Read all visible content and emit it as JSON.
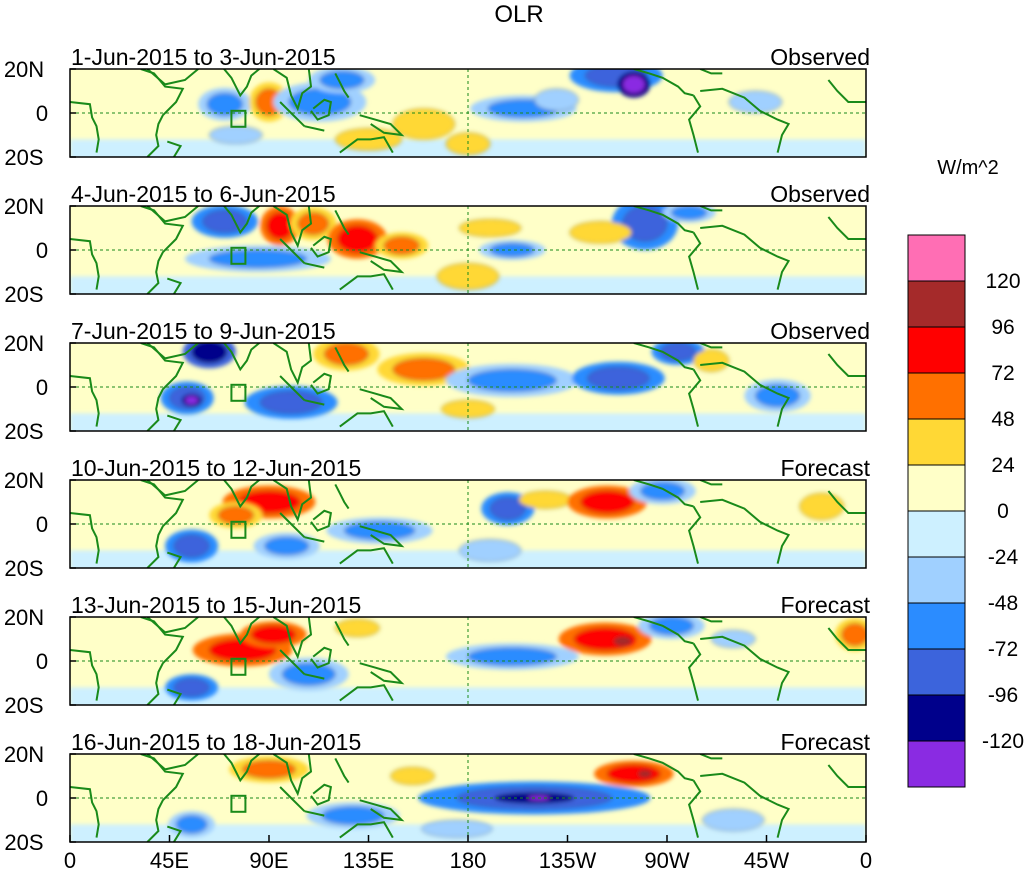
{
  "chart_data": {
    "type": "heatmap",
    "title": "OLR",
    "colorbar_label": "W/m^2",
    "y_tick_labels": [
      "20N",
      "0",
      "20S"
    ],
    "x_tick_labels": [
      "0",
      "45E",
      "90E",
      "135E",
      "180",
      "135W",
      "90W",
      "45W",
      "0"
    ],
    "x_tick_degrees": [
      0,
      45,
      90,
      135,
      180,
      225,
      270,
      315,
      360
    ],
    "lon_range": [
      0,
      360
    ],
    "lat_range": [
      -20,
      20
    ],
    "colorbar": {
      "labels": [
        "120",
        "96",
        "72",
        "48",
        "24",
        "0",
        "-24",
        "-48",
        "-72",
        "-96",
        "-120"
      ],
      "colors": [
        "#ff6eb4",
        "#a52a2a",
        "#ff0000",
        "#ff7000",
        "#ffd835",
        "#ffffc8",
        "#cdf0ff",
        "#a0d0ff",
        "#2b8cff",
        "#3c64dc",
        "#00008b",
        "#8a2be2"
      ]
    },
    "panels": [
      {
        "date_range": "1-Jun-2015 to 3-Jun-2015",
        "status": "Observed",
        "anomalies": [
          {
            "lon": 70,
            "lat": 4,
            "rlon": 8,
            "rlat": 5,
            "value": -48
          },
          {
            "lon": 90,
            "lat": 5,
            "rlon": 6,
            "rlat": 6,
            "value": 48
          },
          {
            "lon": 113,
            "lat": 5,
            "rlon": 14,
            "rlat": 6,
            "value": -48
          },
          {
            "lon": 123,
            "lat": 15,
            "rlon": 10,
            "rlat": 4,
            "value": -48
          },
          {
            "lon": 75,
            "lat": -10,
            "rlon": 12,
            "rlat": 4,
            "value": -24
          },
          {
            "lon": 160,
            "lat": -5,
            "rlon": 14,
            "rlat": 7,
            "value": 24
          },
          {
            "lon": 180,
            "lat": -14,
            "rlon": 10,
            "rlat": 5,
            "value": 24
          },
          {
            "lon": 205,
            "lat": 2,
            "rlon": 16,
            "rlat": 4,
            "value": -48
          },
          {
            "lon": 220,
            "lat": 6,
            "rlon": 10,
            "rlat": 5,
            "value": -24
          },
          {
            "lon": 247,
            "lat": 17,
            "rlon": 14,
            "rlat": 5,
            "value": -72
          },
          {
            "lon": 255,
            "lat": 13,
            "rlon": 5,
            "rlat": 4,
            "value": -120
          },
          {
            "lon": 310,
            "lat": 5,
            "rlon": 12,
            "rlat": 5,
            "value": -24
          },
          {
            "lon": 135,
            "lat": -12,
            "rlon": 15,
            "rlat": 5,
            "value": 24
          }
        ]
      },
      {
        "date_range": "4-Jun-2015 to 6-Jun-2015",
        "status": "Observed",
        "anomalies": [
          {
            "lon": 70,
            "lat": 13,
            "rlon": 10,
            "rlat": 5,
            "value": -72
          },
          {
            "lon": 95,
            "lat": 11,
            "rlon": 6,
            "rlat": 6,
            "value": 72
          },
          {
            "lon": 110,
            "lat": 12,
            "rlon": 7,
            "rlat": 5,
            "value": 48
          },
          {
            "lon": 130,
            "lat": 5,
            "rlon": 9,
            "rlat": 6,
            "value": 72
          },
          {
            "lon": 150,
            "lat": 2,
            "rlon": 8,
            "rlat": 4,
            "value": 48
          },
          {
            "lon": 85,
            "lat": -4,
            "rlon": 22,
            "rlat": 4,
            "value": -48
          },
          {
            "lon": 190,
            "lat": 10,
            "rlon": 14,
            "rlat": 4,
            "value": 24
          },
          {
            "lon": 180,
            "lat": -12,
            "rlon": 14,
            "rlat": 6,
            "value": 24
          },
          {
            "lon": 200,
            "lat": 0,
            "rlon": 10,
            "rlat": 3,
            "value": -48
          },
          {
            "lon": 260,
            "lat": 12,
            "rlon": 10,
            "rlat": 8,
            "value": -72
          },
          {
            "lon": 280,
            "lat": 17,
            "rlon": 8,
            "rlat": 3,
            "value": -48
          },
          {
            "lon": 240,
            "lat": 8,
            "rlon": 14,
            "rlat": 5,
            "value": 24
          }
        ]
      },
      {
        "date_range": "7-Jun-2015 to 9-Jun-2015",
        "status": "Observed",
        "anomalies": [
          {
            "lon": 63,
            "lat": 16,
            "rlon": 8,
            "rlat": 5,
            "value": -96
          },
          {
            "lon": 53,
            "lat": -5,
            "rlon": 8,
            "rlat": 5,
            "value": -72
          },
          {
            "lon": 55,
            "lat": -6,
            "rlon": 3,
            "rlat": 2,
            "value": -120
          },
          {
            "lon": 100,
            "lat": -7,
            "rlon": 14,
            "rlat": 5,
            "value": -72
          },
          {
            "lon": 125,
            "lat": 15,
            "rlon": 10,
            "rlat": 5,
            "value": 48
          },
          {
            "lon": 160,
            "lat": 8,
            "rlon": 14,
            "rlat": 5,
            "value": 48
          },
          {
            "lon": 200,
            "lat": 3,
            "rlon": 20,
            "rlat": 5,
            "value": -48
          },
          {
            "lon": 248,
            "lat": 4,
            "rlon": 14,
            "rlat": 5,
            "value": -72
          },
          {
            "lon": 275,
            "lat": 16,
            "rlon": 8,
            "rlat": 4,
            "value": -72
          },
          {
            "lon": 290,
            "lat": 12,
            "rlon": 8,
            "rlat": 5,
            "value": 24
          },
          {
            "lon": 320,
            "lat": -4,
            "rlon": 10,
            "rlat": 5,
            "value": -48
          },
          {
            "lon": 180,
            "lat": -10,
            "rlon": 12,
            "rlat": 4,
            "value": 24
          }
        ]
      },
      {
        "date_range": "10-Jun-2015 to 12-Jun-2015",
        "status": "Forecast",
        "anomalies": [
          {
            "lon": 90,
            "lat": 10,
            "rlon": 14,
            "rlat": 5,
            "value": 72
          },
          {
            "lon": 75,
            "lat": 4,
            "rlon": 8,
            "rlat": 4,
            "value": 48
          },
          {
            "lon": 55,
            "lat": -10,
            "rlon": 8,
            "rlat": 5,
            "value": -72
          },
          {
            "lon": 98,
            "lat": -10,
            "rlon": 10,
            "rlat": 4,
            "value": -48
          },
          {
            "lon": 140,
            "lat": -3,
            "rlon": 16,
            "rlat": 4,
            "value": -48
          },
          {
            "lon": 198,
            "lat": 7,
            "rlon": 8,
            "rlat": 5,
            "value": -72
          },
          {
            "lon": 215,
            "lat": 11,
            "rlon": 12,
            "rlat": 4,
            "value": 24
          },
          {
            "lon": 243,
            "lat": 10,
            "rlon": 12,
            "rlat": 5,
            "value": 72
          },
          {
            "lon": 268,
            "lat": 15,
            "rlon": 10,
            "rlat": 4,
            "value": -48
          },
          {
            "lon": 190,
            "lat": -12,
            "rlon": 14,
            "rlat": 5,
            "value": -24
          },
          {
            "lon": 340,
            "lat": 8,
            "rlon": 10,
            "rlat": 6,
            "value": 24
          }
        ]
      },
      {
        "date_range": "13-Jun-2015 to 15-Jun-2015",
        "status": "Forecast",
        "anomalies": [
          {
            "lon": 78,
            "lat": 5,
            "rlon": 15,
            "rlat": 5,
            "value": 72
          },
          {
            "lon": 92,
            "lat": 12,
            "rlon": 10,
            "rlat": 4,
            "value": 72
          },
          {
            "lon": 55,
            "lat": -12,
            "rlon": 8,
            "rlat": 4,
            "value": -72
          },
          {
            "lon": 108,
            "lat": -6,
            "rlon": 12,
            "rlat": 5,
            "value": -48
          },
          {
            "lon": 200,
            "lat": 2,
            "rlon": 20,
            "rlat": 4,
            "value": -48
          },
          {
            "lon": 242,
            "lat": 10,
            "rlon": 14,
            "rlat": 5,
            "value": 72
          },
          {
            "lon": 250,
            "lat": 9,
            "rlon": 4,
            "rlat": 2,
            "value": 96
          },
          {
            "lon": 272,
            "lat": 16,
            "rlon": 10,
            "rlat": 4,
            "value": -48
          },
          {
            "lon": 300,
            "lat": 10,
            "rlon": 10,
            "rlat": 4,
            "value": -24
          },
          {
            "lon": 130,
            "lat": 15,
            "rlon": 10,
            "rlat": 4,
            "value": 24
          },
          {
            "lon": 355,
            "lat": 12,
            "rlon": 6,
            "rlat": 5,
            "value": 48
          }
        ]
      },
      {
        "date_range": "16-Jun-2015 to 18-Jun-2015",
        "status": "Forecast",
        "anomalies": [
          {
            "lon": 210,
            "lat": 0,
            "rlon": 35,
            "rlat": 5,
            "value": -72
          },
          {
            "lon": 210,
            "lat": 0,
            "rlon": 18,
            "rlat": 2.5,
            "value": -96
          },
          {
            "lon": 212,
            "lat": 0,
            "rlon": 5,
            "rlat": 1.2,
            "value": -120
          },
          {
            "lon": 255,
            "lat": 11,
            "rlon": 12,
            "rlat": 4,
            "value": 72
          },
          {
            "lon": 260,
            "lat": 11,
            "rlon": 3,
            "rlat": 1.5,
            "value": 96
          },
          {
            "lon": 90,
            "lat": 13,
            "rlon": 12,
            "rlat": 4,
            "value": 48
          },
          {
            "lon": 55,
            "lat": -12,
            "rlon": 7,
            "rlat": 4,
            "value": -48
          },
          {
            "lon": 128,
            "lat": -8,
            "rlon": 14,
            "rlat": 4,
            "value": -48
          },
          {
            "lon": 175,
            "lat": -14,
            "rlon": 16,
            "rlat": 4,
            "value": -24
          },
          {
            "lon": 300,
            "lat": -10,
            "rlon": 14,
            "rlat": 5,
            "value": -24
          },
          {
            "lon": 155,
            "lat": 10,
            "rlon": 10,
            "rlat": 4,
            "value": 24
          }
        ]
      }
    ]
  }
}
